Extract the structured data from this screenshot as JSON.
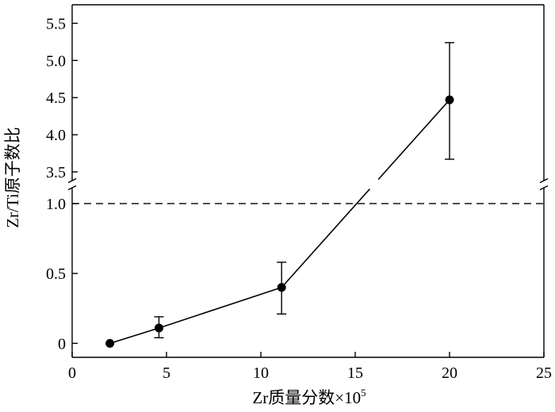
{
  "chart_data": {
    "type": "scatter",
    "xlabel": "Zr质量分数×10",
    "xlabel_superscript": "5",
    "ylabel": "Zr/Ti原子数比",
    "xlim": [
      0,
      25
    ],
    "x_ticks": [
      0,
      5,
      10,
      15,
      20,
      25
    ],
    "y_axis_broken": true,
    "ylim_lower": [
      -0.1,
      1.13
    ],
    "ylim_upper": [
      3.35,
      5.75
    ],
    "y_ticks_lower": [
      0,
      0.5,
      1.0
    ],
    "y_tick_labels_lower": [
      "0",
      "0.5",
      "1.0"
    ],
    "y_ticks_upper": [
      3.5,
      4.0,
      4.5,
      5.0,
      5.5
    ],
    "y_tick_labels_upper": [
      "3.5",
      "4.0",
      "4.5",
      "5.0",
      "5.5"
    ],
    "reference_line": {
      "y": 1.0,
      "style": "dashed"
    },
    "series": [
      {
        "x": [
          2.0,
          4.6,
          11.1,
          20.0
        ],
        "y": [
          0.0,
          0.11,
          0.4,
          4.47
        ],
        "error_low": [
          null,
          0.04,
          0.21,
          3.67
        ],
        "error_high": [
          null,
          0.19,
          0.58,
          5.24
        ],
        "marker": "filled-circle",
        "line": "solid"
      }
    ],
    "grid": false,
    "legend": "none"
  }
}
